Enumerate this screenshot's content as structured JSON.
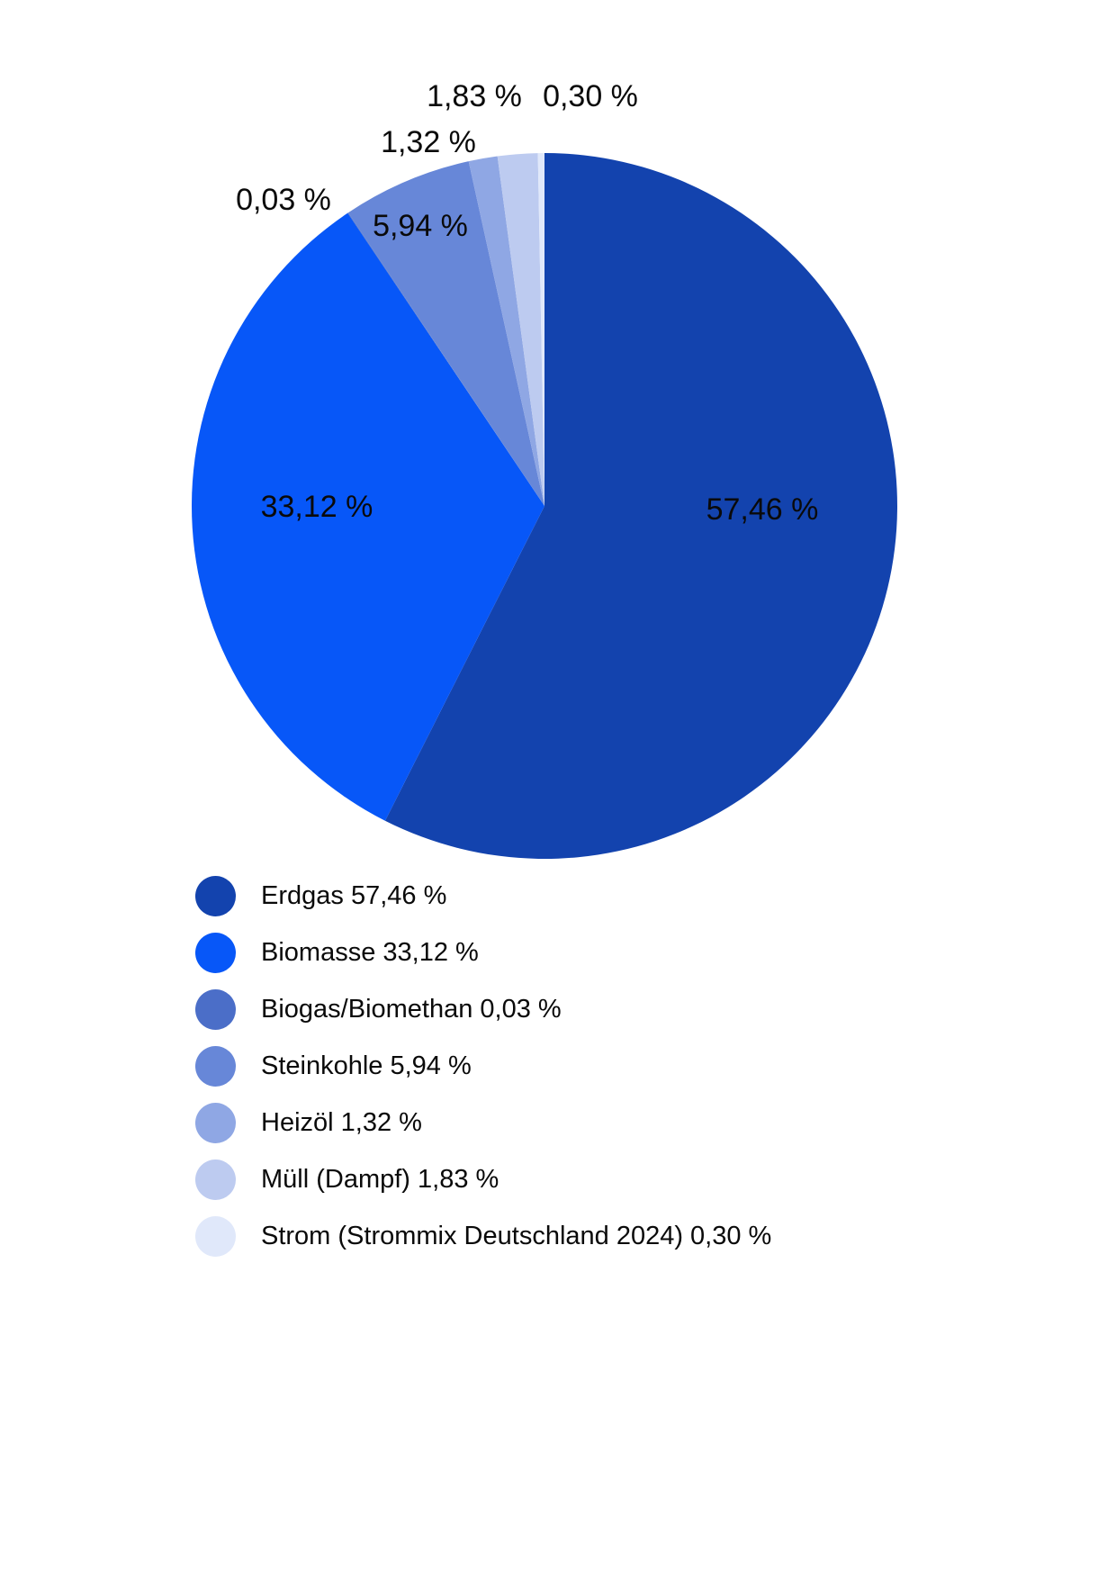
{
  "page": {
    "background_color": "#ffffff",
    "text_color": "#0a0a0a"
  },
  "chart_data": {
    "type": "pie",
    "title": "",
    "direction": "clockwise",
    "start_angle_deg": 0,
    "legend_position": "bottom-left",
    "value_labels_shown": true,
    "slices": [
      {
        "label": "Erdgas",
        "value": 57.46,
        "value_label": "57,46 %",
        "color": "#1343ae",
        "legend_label": "Erdgas 57,46 %"
      },
      {
        "label": "Biomasse",
        "value": 33.12,
        "value_label": "33,12 %",
        "color": "#0757f8",
        "legend_label": "Biomasse 33,12 %"
      },
      {
        "label": "Biogas/Biomethan",
        "value": 0.03,
        "value_label": "0,03 %",
        "color": "#4b6ec8",
        "legend_label": "Biogas/Biomethan 0,03 %"
      },
      {
        "label": "Steinkohle",
        "value": 5.94,
        "value_label": "5,94 %",
        "color": "#6787d8",
        "legend_label": "Steinkohle 5,94 %"
      },
      {
        "label": "Heizöl",
        "value": 1.32,
        "value_label": "1,32 %",
        "color": "#8fa7e4",
        "legend_label": "Heizöl 1,32 %"
      },
      {
        "label": "Müll (Dampf)",
        "value": 1.83,
        "value_label": "1,83 %",
        "color": "#bdcbf0",
        "legend_label": "Müll (Dampf) 1,83 %"
      },
      {
        "label": "Strom (Strommix Deutschland 2024)",
        "value": 0.3,
        "value_label": "0,30 %",
        "color": "#e0e8fa",
        "legend_label": "Strom (Strommix Deutschland 2024) 0,30 %"
      }
    ]
  }
}
